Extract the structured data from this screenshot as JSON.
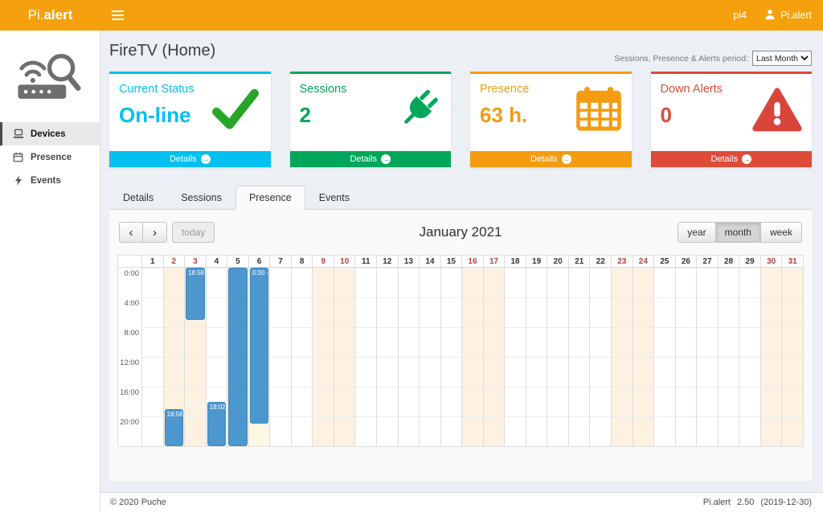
{
  "colors": {
    "orange": "#f5a10d",
    "panel": "#fafafa",
    "event_blue": "#4b97ce",
    "weekend_bg": "#fdf1e2",
    "highlight_bg": "#fcf8e3",
    "weekend_text": "#b0413e"
  },
  "icons": {
    "prev": "‹",
    "next": "›",
    "details_arrow": "→"
  },
  "header": {
    "logo_prefix": "Pi.",
    "logo_suffix": "alert",
    "hostname": "pi4",
    "user_label": "Pi.alert"
  },
  "sidebar": {
    "items": [
      {
        "label": "Devices",
        "active": true
      },
      {
        "label": "Presence",
        "active": false
      },
      {
        "label": "Events",
        "active": false
      }
    ]
  },
  "page": {
    "title": "FireTV (Home)",
    "period_label": "Sessions, Presence & Alerts period:",
    "period_value": "Last Month"
  },
  "cards": [
    {
      "title": "Current Status",
      "value": "On-line",
      "footer_label": "Details",
      "color": "#00c0ef",
      "icon": "check-icon"
    },
    {
      "title": "Sessions",
      "value": "2",
      "footer_label": "Details",
      "color": "#00a65a",
      "icon": "plug-icon"
    },
    {
      "title": "Presence",
      "value": "63 h.",
      "footer_label": "Details",
      "color": "#f39c12",
      "icon": "calendar-icon"
    },
    {
      "title": "Down Alerts",
      "value": "0",
      "footer_label": "Details",
      "color": "#dd4b39",
      "icon": "warning-triangle-icon"
    }
  ],
  "tabs": [
    {
      "label": "Details",
      "active": false
    },
    {
      "label": "Sessions",
      "active": false
    },
    {
      "label": "Presence",
      "active": true
    },
    {
      "label": "Events",
      "active": false
    }
  ],
  "calendar": {
    "title": "January 2021",
    "today_label": "today",
    "views": [
      "year",
      "month",
      "week"
    ],
    "active_view": "month",
    "days": 31,
    "weekend_days": [
      2,
      3,
      9,
      10,
      16,
      17,
      23,
      24,
      30,
      31
    ],
    "highlight_days": [
      5,
      6
    ],
    "time_labels": [
      "0:00",
      "4:00",
      "8:00",
      "12:00",
      "16:00",
      "20:00"
    ],
    "events": [
      {
        "day": 2,
        "start": 18.97,
        "end": 24,
        "label": "18:58"
      },
      {
        "day": 3,
        "start": 0,
        "end": 7,
        "label": "18:58"
      },
      {
        "day": 4,
        "start": 18.03,
        "end": 24,
        "label": "18:02"
      },
      {
        "day": 5,
        "start": 0,
        "end": 24,
        "label": ""
      },
      {
        "day": 6,
        "start": 0,
        "end": 21,
        "label": "0:00 -"
      }
    ]
  },
  "footer": {
    "copyright": "© 2020 Puche",
    "app": "Pi.alert",
    "version": "2.50",
    "date": "(2019-12-30)"
  }
}
